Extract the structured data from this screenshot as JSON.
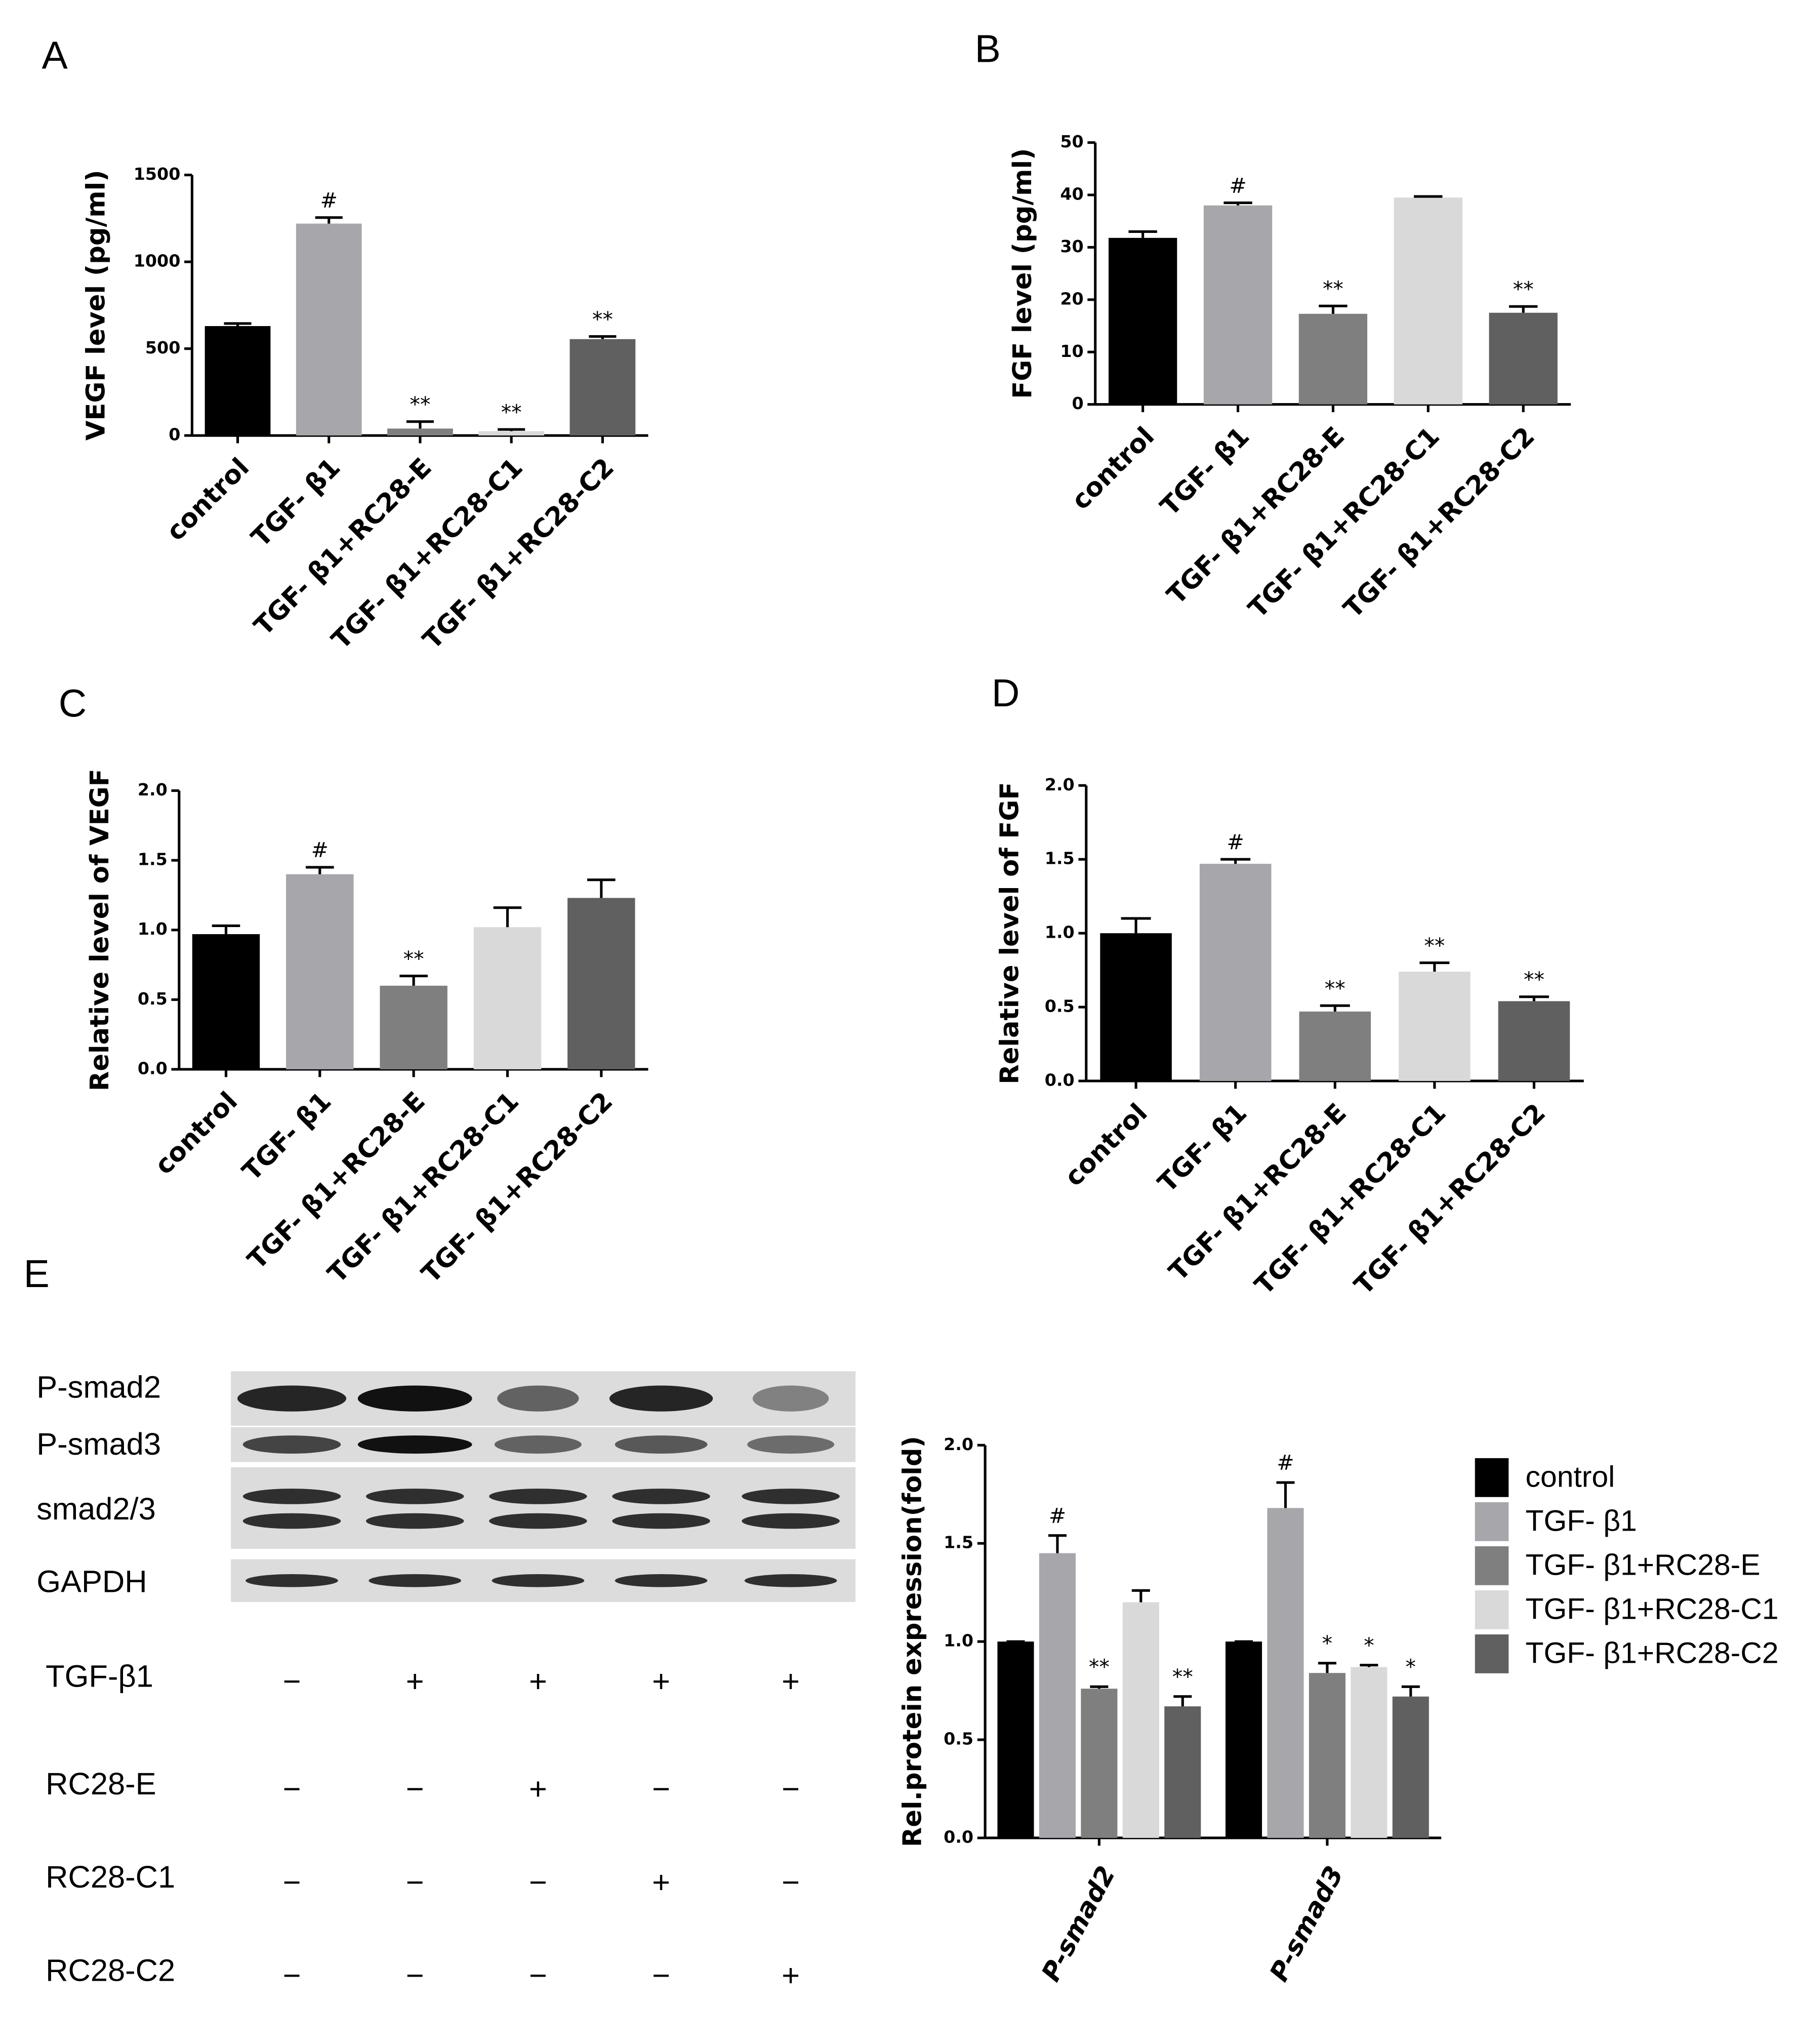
{
  "chart_data": [
    {
      "type": "bar",
      "panel_label": "A",
      "y_label": "VEGF level (pg/ml)",
      "categories": [
        "control",
        "TGF- β1",
        "TGF- β1+RC28-E",
        "TGF- β1+RC28-C1",
        "TGF- β1+RC28-C2"
      ],
      "values": [
        630,
        1220,
        40,
        25,
        555
      ],
      "errors": [
        15,
        35,
        40,
        10,
        15
      ],
      "annotations": [
        null,
        "#",
        "**",
        "**",
        "**"
      ],
      "colors": [
        "#000000",
        "#a6a6ab",
        "#7f7f7f",
        "#d9d9d9",
        "#606060"
      ],
      "ylim": [
        0,
        1500
      ],
      "yticks": [
        0,
        500,
        1000,
        1500
      ]
    },
    {
      "type": "bar",
      "panel_label": "B",
      "y_label": "FGF level (pg/ml)",
      "categories": [
        "control",
        "TGF- β1",
        "TGF- β1+RC28-E",
        "TGF- β1+RC28-C1",
        "TGF- β1+RC28-C2"
      ],
      "values": [
        31.8,
        38,
        17.3,
        39.5,
        17.5
      ],
      "errors": [
        1.2,
        0.5,
        1.5,
        0.2,
        1.2
      ],
      "annotations": [
        null,
        "#",
        "**",
        null,
        "**"
      ],
      "colors": [
        "#000000",
        "#a6a6ab",
        "#7f7f7f",
        "#d9d9d9",
        "#606060"
      ],
      "ylim": [
        0,
        50
      ],
      "yticks": [
        0,
        10,
        20,
        30,
        40,
        50
      ]
    },
    {
      "type": "bar",
      "panel_label": "C",
      "y_label": "Relative level of VEGF",
      "categories": [
        "control",
        "TGF- β1",
        "TGF- β1+RC28-E",
        "TGF- β1+RC28-C1",
        "TGF- β1+RC28-C2"
      ],
      "values": [
        0.97,
        1.4,
        0.6,
        1.02,
        1.23
      ],
      "errors": [
        0.06,
        0.05,
        0.07,
        0.14,
        0.13
      ],
      "annotations": [
        null,
        "#",
        "**",
        null,
        null
      ],
      "colors": [
        "#000000",
        "#a6a6ab",
        "#7f7f7f",
        "#d9d9d9",
        "#606060"
      ],
      "ylim": [
        0,
        2
      ],
      "yticks": [
        {
          "value": 0,
          "label": "0.0"
        },
        {
          "value": 0.5,
          "label": "0.5"
        },
        {
          "value": 1,
          "label": "1.0"
        },
        {
          "value": 1.5,
          "label": "1.5"
        },
        {
          "value": 2,
          "label": "2.0"
        }
      ]
    },
    {
      "type": "bar",
      "panel_label": "D",
      "y_label": "Relative level of FGF",
      "categories": [
        "control",
        "TGF- β1",
        "TGF- β1+RC28-E",
        "TGF- β1+RC28-C1",
        "TGF- β1+RC28-C2"
      ],
      "values": [
        1.0,
        1.47,
        0.47,
        0.74,
        0.54
      ],
      "errors": [
        0.1,
        0.03,
        0.04,
        0.06,
        0.03
      ],
      "annotations": [
        null,
        "#",
        "**",
        "**",
        "**"
      ],
      "colors": [
        "#000000",
        "#a6a6ab",
        "#7f7f7f",
        "#d9d9d9",
        "#606060"
      ],
      "ylim": [
        0,
        2
      ],
      "yticks": [
        {
          "value": 0,
          "label": "0.0"
        },
        {
          "value": 0.5,
          "label": "0.5"
        },
        {
          "value": 1,
          "label": "1.0"
        },
        {
          "value": 1.5,
          "label": "1.5"
        },
        {
          "value": 2,
          "label": "2.0"
        }
      ]
    },
    {
      "type": "grouped_bar",
      "panel_label": "E",
      "y_label": "Rel.protein expression(fold)",
      "categories": [
        "P-smad2",
        "P-smad3"
      ],
      "series": [
        {
          "name": "control",
          "color": "#000000",
          "values": [
            1,
            1
          ],
          "errors": [
            0,
            0
          ],
          "annotations": [
            null,
            null
          ]
        },
        {
          "name": "TGF- β1",
          "color": "#a6a6ab",
          "values": [
            1.45,
            1.68
          ],
          "errors": [
            0.09,
            0.13
          ],
          "annotations": [
            "#",
            "#"
          ]
        },
        {
          "name": "TGF- β1+RC28-E",
          "color": "#7f7f7f",
          "values": [
            0.76,
            0.84
          ],
          "errors": [
            0.01,
            0.05
          ],
          "annotations": [
            "**",
            "*"
          ]
        },
        {
          "name": "TGF- β1+RC28-C1",
          "color": "#d9d9d9",
          "values": [
            1.2,
            0.87
          ],
          "errors": [
            0.06,
            0.01
          ],
          "annotations": [
            null,
            "*"
          ]
        },
        {
          "name": "TGF- β1+RC28-C2",
          "color": "#606060",
          "values": [
            0.67,
            0.72
          ],
          "errors": [
            0.05,
            0.05
          ],
          "annotations": [
            "**",
            "*"
          ]
        }
      ],
      "ylim": [
        0,
        2
      ],
      "yticks": [
        {
          "value": 0,
          "label": "0.0"
        },
        {
          "value": 0.5,
          "label": "0.5"
        },
        {
          "value": 1,
          "label": "1.0"
        },
        {
          "value": 1.5,
          "label": "1.5"
        },
        {
          "value": 2,
          "label": "2.0"
        }
      ],
      "legend": "right"
    }
  ],
  "blot": {
    "rows": [
      "P-smad2",
      "P-smad3",
      "smad2/3",
      "GAPDH"
    ],
    "treatments": [
      {
        "label": "TGF-β1",
        "signs": [
          "−",
          "+",
          "+",
          "+",
          "+"
        ]
      },
      {
        "label": "RC28-E",
        "signs": [
          "−",
          "−",
          "+",
          "−",
          "−"
        ]
      },
      {
        "label": "RC28-C1",
        "signs": [
          "−",
          "−",
          "−",
          "+",
          "−"
        ]
      },
      {
        "label": "RC28-C2",
        "signs": [
          "−",
          "−",
          "−",
          "−",
          "+"
        ]
      }
    ]
  }
}
